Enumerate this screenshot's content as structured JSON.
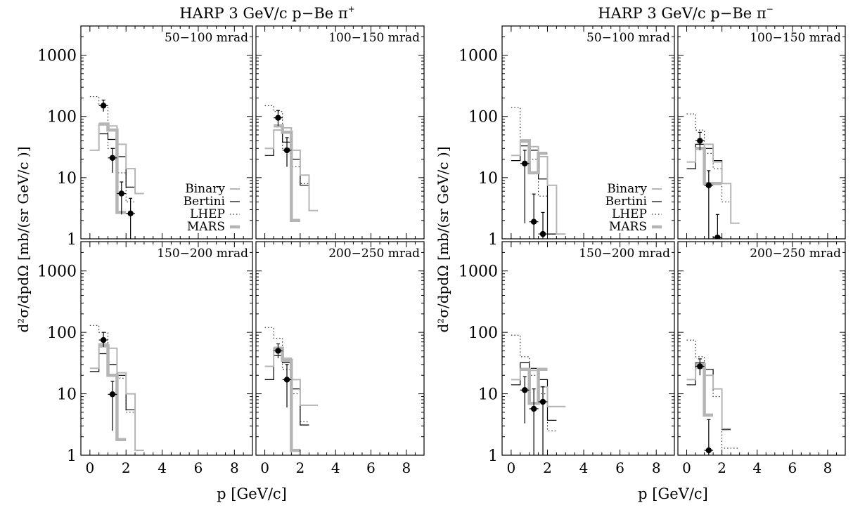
{
  "chart_data": [
    {
      "type": "line",
      "title": "HARP 3 GeV/c p−Be π",
      "title_charge": "+",
      "ylabel": "d²σ/dpdΩ [mb/(sr GeV/c )]",
      "xlabel": "p [GeV/c]",
      "xlim": [
        -0.5,
        9
      ],
      "ylim": [
        1,
        3000
      ],
      "y_scale": "log",
      "x_ticks": [
        "0",
        "2",
        "4",
        "6",
        "8"
      ],
      "y_ticks": [
        "1",
        "10",
        "100",
        "1000"
      ],
      "legend": [
        {
          "name": "Binary",
          "style": "light-gray"
        },
        {
          "name": "Bertini",
          "style": "thin-black"
        },
        {
          "name": "LHEP",
          "style": "dotted"
        },
        {
          "name": "MARS",
          "style": "thick-gray"
        }
      ],
      "panels": [
        {
          "label": "50−100 mrad",
          "binary": {
            "edges": [
              0,
              0.5,
              1.0,
              1.5,
              2.0,
              2.5,
              3.0
            ],
            "values": [
              28,
              75,
              70,
              35,
              14,
              5.5
            ]
          },
          "bertini": {
            "edges": [
              0,
              0.5,
              1.0,
              1.5,
              2.0,
              2.5
            ],
            "values": [
              28,
              52,
              42,
              22,
              7
            ]
          },
          "lhep": {
            "edges": [
              0,
              0.5,
              1.0,
              1.5,
              2.0,
              2.5
            ],
            "values": [
              210,
              150,
              30,
              12,
              4
            ]
          },
          "mars": {
            "edges": [
              0.5,
              1.0,
              1.5,
              2.0
            ],
            "values": [
              75,
              60,
              2.7
            ]
          },
          "points": [
            {
              "x": 0.75,
              "y": 150,
              "xerr": 0.25,
              "ylo": 120,
              "yhi": 185
            },
            {
              "x": 1.25,
              "y": 21,
              "xerr": 0.25,
              "ylo": 12,
              "yhi": 30
            },
            {
              "x": 1.75,
              "y": 5.5,
              "xerr": 0.25,
              "ylo": 2.5,
              "yhi": 8.5
            },
            {
              "x": 2.25,
              "y": 2.6,
              "xerr": 0.25,
              "ylo": 1,
              "yhi": 4.6
            }
          ]
        },
        {
          "label": "100−150 mrad",
          "binary": {
            "edges": [
              0,
              0.5,
              1.0,
              1.5,
              2.0,
              2.5,
              3.0
            ],
            "values": [
              30,
              60,
              65,
              28,
              11,
              2.9
            ]
          },
          "bertini": {
            "edges": [
              0,
              0.5,
              1.0,
              1.5,
              2.0,
              2.5
            ],
            "values": [
              23,
              60,
              38,
              20,
              7.5
            ]
          },
          "lhep": {
            "edges": [
              0,
              0.5,
              1.0,
              1.5,
              2.0,
              2.5
            ],
            "values": [
              150,
              120,
              30,
              15,
              8
            ]
          },
          "mars": {
            "edges": [
              0.5,
              1.0,
              1.5,
              2.0
            ],
            "values": [
              70,
              55,
              2
            ]
          },
          "points": [
            {
              "x": 0.75,
              "y": 95,
              "xerr": 0.25,
              "ylo": 70,
              "yhi": 125
            },
            {
              "x": 1.25,
              "y": 28,
              "xerr": 0.25,
              "ylo": 15,
              "yhi": 45
            }
          ]
        },
        {
          "label": "150−200 mrad",
          "binary": {
            "edges": [
              0,
              0.5,
              1.0,
              1.5,
              2.0,
              2.5,
              3.0
            ],
            "values": [
              26,
              65,
              55,
              22,
              10,
              1.2
            ]
          },
          "bertini": {
            "edges": [
              0,
              0.5,
              1.0,
              1.5,
              2.0,
              2.5
            ],
            "values": [
              23,
              45,
              30,
              20,
              5.5
            ]
          },
          "lhep": {
            "edges": [
              0,
              0.5,
              1.0,
              1.5,
              2.0,
              2.5
            ],
            "values": [
              130,
              100,
              30,
              18,
              5
            ]
          },
          "mars": {
            "edges": [
              0.5,
              1.0,
              1.5,
              2.0
            ],
            "values": [
              60,
              20,
              1.8
            ]
          },
          "points": [
            {
              "x": 0.75,
              "y": 75,
              "xerr": 0.25,
              "ylo": 58,
              "yhi": 100
            },
            {
              "x": 1.25,
              "y": 9.8,
              "xerr": 0.25,
              "ylo": 2.5,
              "yhi": 16
            }
          ]
        },
        {
          "label": "200−250 mrad",
          "binary": {
            "edges": [
              0,
              0.5,
              1.0,
              1.5,
              2.0,
              2.5,
              3.0
            ],
            "values": [
              28,
              55,
              38,
              17,
              6.5,
              6.5
            ]
          },
          "bertini": {
            "edges": [
              0,
              0.5,
              1.0,
              1.5,
              2.0,
              2.5
            ],
            "values": [
              17,
              42,
              32,
              12,
              3.1
            ]
          },
          "lhep": {
            "edges": [
              0,
              0.5,
              1.0,
              1.5,
              2.0,
              2.5
            ],
            "values": [
              120,
              80,
              25,
              10,
              3.5
            ]
          },
          "mars": {
            "edges": [
              0.5,
              1.0,
              1.5,
              2.0
            ],
            "values": [
              55,
              35,
              1.2
            ]
          },
          "points": [
            {
              "x": 0.75,
              "y": 50,
              "xerr": 0.25,
              "ylo": 38,
              "yhi": 65
            },
            {
              "x": 1.25,
              "y": 17,
              "xerr": 0.25,
              "ylo": 6,
              "yhi": 30
            }
          ]
        }
      ]
    },
    {
      "type": "line",
      "title": "HARP 3 GeV/c p−Be π",
      "title_charge": "−",
      "ylabel": "d²σ/dpdΩ [mb/(sr GeV/c )]",
      "xlabel": "p [GeV/c]",
      "xlim": [
        -0.5,
        9
      ],
      "ylim": [
        1,
        3000
      ],
      "y_scale": "log",
      "x_ticks": [
        "0",
        "2",
        "4",
        "6",
        "8"
      ],
      "y_ticks": [
        "1",
        "10",
        "100",
        "1000"
      ],
      "legend": [
        {
          "name": "Binary",
          "style": "light-gray"
        },
        {
          "name": "Bertini",
          "style": "thin-black"
        },
        {
          "name": "LHEP",
          "style": "dotted"
        },
        {
          "name": "MARS",
          "style": "thick-gray"
        }
      ],
      "panels": [
        {
          "label": "50−100 mrad",
          "binary": {
            "edges": [
              0,
              0.5,
              1.0,
              1.5,
              2.0,
              2.5,
              3.0
            ],
            "values": [
              23,
              38,
              32,
              22,
              7.5,
              1.2
            ]
          },
          "bertini": {
            "edges": [
              0,
              0.5,
              1.0,
              1.5,
              2.0,
              2.5
            ],
            "values": [
              19,
              33,
              28,
              9.5,
              1.2
            ]
          },
          "lhep": {
            "edges": [
              0,
              0.5,
              1.0,
              1.5,
              2.0,
              2.5
            ],
            "values": [
              140,
              40,
              20,
              5,
              1.2
            ]
          },
          "mars": {
            "edges": [
              0.5,
              1.0,
              1.5,
              2.0
            ],
            "values": [
              40,
              12,
              25
            ]
          },
          "points": [
            {
              "x": 0.75,
              "y": 17,
              "xerr": 0.25,
              "ylo": 1.8,
              "yhi": 28
            },
            {
              "x": 1.25,
              "y": 1.9,
              "xerr": 0.25,
              "ylo": 1,
              "yhi": 5.4
            },
            {
              "x": 1.75,
              "y": 1.2,
              "xerr": 0.25,
              "ylo": 1,
              "yhi": 2.7
            }
          ]
        },
        {
          "label": "100−150 mrad",
          "binary": {
            "edges": [
              0,
              0.5,
              1.0,
              1.5,
              2.0,
              2.5,
              3.0
            ],
            "values": [
              18,
              30,
              35,
              18,
              8,
              1.8
            ]
          },
          "bertini": {
            "edges": [
              0,
              0.5,
              1.0,
              1.5,
              2.0,
              2.5
            ],
            "values": [
              14,
              35,
              30,
              19,
              8
            ]
          },
          "lhep": {
            "edges": [
              0,
              0.5,
              1.0,
              1.5,
              2.0,
              2.5
            ],
            "values": [
              110,
              60,
              25,
              14,
              4
            ]
          },
          "mars": {
            "edges": [
              0.5,
              1.0,
              1.5,
              2.0
            ],
            "values": [
              30,
              8,
              8
            ]
          },
          "points": [
            {
              "x": 0.75,
              "y": 40,
              "xerr": 0.25,
              "ylo": 28,
              "yhi": 55
            },
            {
              "x": 1.25,
              "y": 7.5,
              "xerr": 0.25,
              "ylo": 1,
              "yhi": 13
            },
            {
              "x": 1.75,
              "y": 1.05,
              "xerr": 0.25,
              "ylo": 1,
              "yhi": 2.5
            }
          ]
        },
        {
          "label": "150−200 mrad",
          "binary": {
            "edges": [
              0,
              0.5,
              1.0,
              1.5,
              2.0,
              2.5,
              3.0
            ],
            "values": [
              17,
              25,
              24,
              13,
              6.2,
              6.2
            ]
          },
          "bertini": {
            "edges": [
              0,
              0.5,
              1.0,
              1.5,
              2.0,
              2.5
            ],
            "values": [
              14,
              32,
              26,
              17,
              3.7
            ]
          },
          "lhep": {
            "edges": [
              0,
              0.5,
              1.0,
              1.5,
              2.0,
              2.5
            ],
            "values": [
              90,
              40,
              20,
              10,
              2.5
            ]
          },
          "mars": {
            "edges": [
              0.5,
              1.0,
              1.5,
              2.0
            ],
            "values": [
              25,
              7,
              25
            ]
          },
          "points": [
            {
              "x": 0.75,
              "y": 11.5,
              "xerr": 0.25,
              "ylo": 3.3,
              "yhi": 19
            },
            {
              "x": 1.25,
              "y": 5.7,
              "xerr": 0.25,
              "ylo": 1,
              "yhi": 12
            },
            {
              "x": 1.75,
              "y": 7.4,
              "xerr": 0.25,
              "ylo": 1,
              "yhi": 13
            }
          ]
        },
        {
          "label": "200−250 mrad",
          "binary": {
            "edges": [
              0,
              0.5,
              1.0,
              1.5,
              2.0,
              2.5
            ],
            "values": [
              17,
              26,
              20,
              12,
              2.7
            ]
          },
          "bertini": {
            "edges": [
              0,
              0.5,
              1.0,
              1.5,
              2.0,
              2.5
            ],
            "values": [
              14,
              32,
              25,
              12,
              2.6
            ]
          },
          "lhep": {
            "edges": [
              0,
              0.5,
              1.0,
              1.5,
              2.0,
              2.5,
              3.0
            ],
            "values": [
              75,
              40,
              20,
              9,
              1.3,
              1.3
            ]
          },
          "mars": {
            "edges": [
              0.5,
              1.0,
              1.5
            ],
            "values": [
              30,
              4.5
            ]
          },
          "points": [
            {
              "x": 0.75,
              "y": 28,
              "xerr": 0.25,
              "ylo": 20,
              "yhi": 37
            },
            {
              "x": 1.25,
              "y": 1.2,
              "xerr": 0.25,
              "ylo": 1,
              "yhi": 3.8
            }
          ]
        }
      ]
    }
  ]
}
